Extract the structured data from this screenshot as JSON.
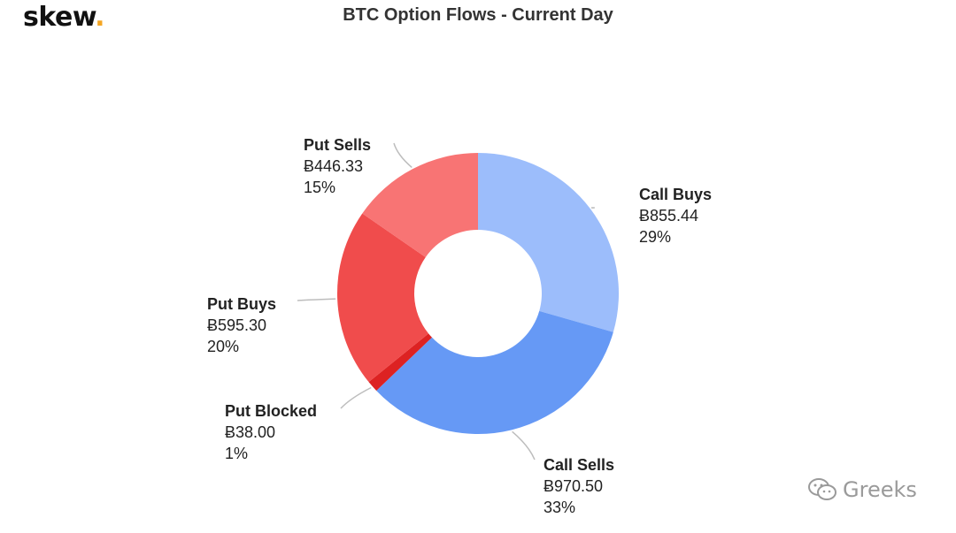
{
  "brand": {
    "name": "skew",
    "dot": "."
  },
  "watermark": {
    "icon": "wechat-icon",
    "text": "Greeks"
  },
  "chart_data": {
    "type": "pie",
    "title": "BTC Option Flows - Current Day",
    "donut": true,
    "slices": [
      {
        "label": "Call Buys",
        "value": "Ƀ855.44",
        "amount": 855.44,
        "percent": "29%",
        "color": "#9cbdfb"
      },
      {
        "label": "Call Sells",
        "value": "Ƀ970.50",
        "amount": 970.5,
        "percent": "33%",
        "color": "#6699f5"
      },
      {
        "label": "Put Blocked",
        "value": "Ƀ38.00",
        "amount": 38.0,
        "percent": "1%",
        "color": "#dd2222"
      },
      {
        "label": "Put Buys",
        "value": "Ƀ595.30",
        "amount": 595.3,
        "percent": "20%",
        "color": "#f04c4c"
      },
      {
        "label": "Put Sells",
        "value": "Ƀ446.33",
        "amount": 446.33,
        "percent": "15%",
        "color": "#f87474"
      }
    ]
  }
}
